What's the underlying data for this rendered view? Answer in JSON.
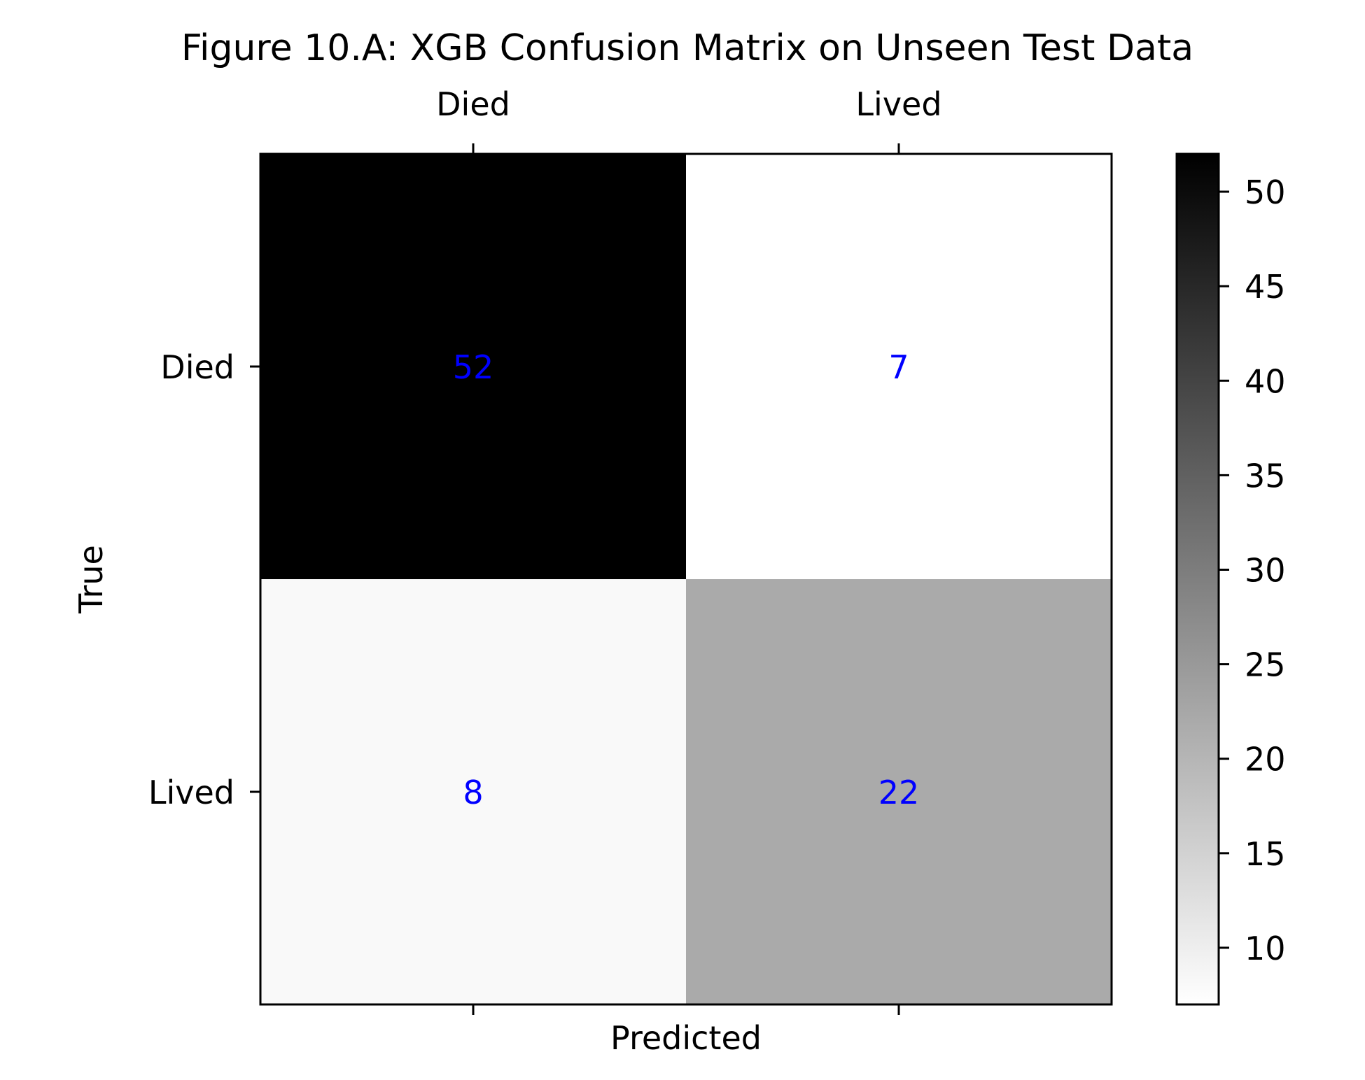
{
  "chart_data": {
    "type": "heatmap",
    "title": "Figure 10.A: XGB Confusion Matrix on Unseen Test Data",
    "xlabel": "Predicted",
    "ylabel": "True",
    "x_categories": [
      "Died",
      "Lived"
    ],
    "y_categories": [
      "Died",
      "Lived"
    ],
    "values": [
      [
        52,
        7
      ],
      [
        8,
        22
      ]
    ],
    "colormap": "Greys",
    "value_range": [
      7,
      52
    ],
    "colorbar_ticks": [
      10,
      15,
      20,
      25,
      30,
      35,
      40,
      45,
      50
    ],
    "annotation_color": "#0000ff",
    "grid": false,
    "x_tick_position": "top"
  }
}
